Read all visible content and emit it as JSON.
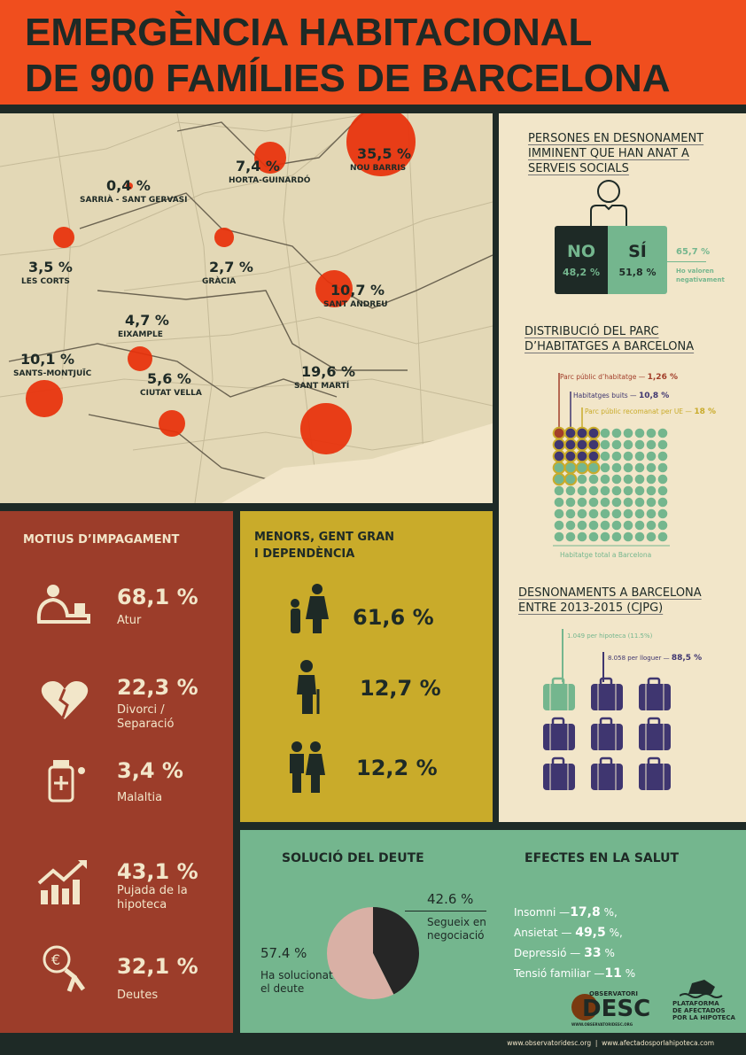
{
  "header": {
    "line1": "EMERGÈNCIA HABITACIONAL",
    "line2": "DE 900 FAMÍLIES DE BARCELONA"
  },
  "map": {
    "districts": [
      {
        "name": "NOU BARRIS",
        "pct": "35,5 %",
        "value": 35.5
      },
      {
        "name": "HORTA-GUINARDÓ",
        "pct": "7,4 %",
        "value": 7.4
      },
      {
        "name": "SARRIÀ - SANT GERVASI",
        "pct": "0,4 %",
        "value": 0.4
      },
      {
        "name": "LES CORTS",
        "pct": "3,5 %",
        "value": 3.5
      },
      {
        "name": "GRÀCIA",
        "pct": "2,7 %",
        "value": 2.7
      },
      {
        "name": "SANT ANDREU",
        "pct": "10,7 %",
        "value": 10.7
      },
      {
        "name": "EIXAMPLE",
        "pct": "4,7 %",
        "value": 4.7
      },
      {
        "name": "SANTS-MONTJUÏC",
        "pct": "10,1 %",
        "value": 10.1
      },
      {
        "name": "CIUTAT VELLA",
        "pct": "5,6 %",
        "value": 5.6
      },
      {
        "name": "SANT MARTÍ",
        "pct": "19,6 %",
        "value": 19.6
      }
    ],
    "circle_color": "#e8300a"
  },
  "social": {
    "title": [
      "PERSONES EN DESNONAMENT",
      "IMMINENT QUE HAN ANAT A",
      "SERVEIS SOCIALS"
    ],
    "no_label": "NO",
    "no_pct": "48,2 %",
    "si_label": "SÍ",
    "si_pct": "51,8 %",
    "neg_pct": "65,7 %",
    "neg_label": [
      "Ho valoren",
      "negativament"
    ]
  },
  "parc": {
    "title": [
      "DISTRIBUCIÓ DEL PARC",
      "D’HABITATGES A BARCELONA"
    ],
    "public": {
      "label": "Parc públic d’habitatge —",
      "pct": "1,26 %",
      "color": "#a23e2a"
    },
    "buits": {
      "label": "Habitatges buits —",
      "pct": "10,8 %",
      "color": "#3f3670"
    },
    "ue": {
      "label": "Parc públic recomanat per UE —",
      "pct": "18 %",
      "color": "#c9ab2a"
    },
    "total_label": "Habitatge total a Barcelona",
    "total_color": "#74b68e"
  },
  "desnon": {
    "title": [
      "DESNONAMENTS A BARCELONA",
      "ENTRE 2013-2015 (CJPG)"
    ],
    "hipoteca": "1.049 per hipoteca (11.5%)",
    "lloguer": "8.058 per lloguer —",
    "lloguer_pct": "88,5 %"
  },
  "motius": {
    "title": "MOTIUS D’IMPAGAMENT",
    "items": [
      {
        "pct": "68,1 %",
        "label": "Atur",
        "icon": "unemployed-person-icon"
      },
      {
        "pct": "22,3 %",
        "label": "Divorci / Separació",
        "icon": "broken-heart-icon"
      },
      {
        "pct": "3,4 %",
        "label": "Malaltia",
        "icon": "medicine-bottle-icon"
      },
      {
        "pct": "43,1 %",
        "label": "Pujada de la hipoteca",
        "icon": "rising-chart-icon"
      },
      {
        "pct": "32,1 %",
        "label": "Deutes",
        "icon": "debt-burden-icon"
      }
    ]
  },
  "menors": {
    "title": [
      "MENORS, GENT GRAN",
      "I DEPENDÈNCIA"
    ],
    "items": [
      {
        "pct": "61,6 %",
        "icon": "mother-child-icon"
      },
      {
        "pct": "12,7 %",
        "icon": "elderly-person-icon"
      },
      {
        "pct": "12,2 %",
        "icon": "elderly-couple-icon"
      }
    ]
  },
  "deute": {
    "title": "SOLUCIÓ DEL DEUTE",
    "chart_data": {
      "type": "pie",
      "slices": [
        {
          "label": "Segueix en negociació",
          "value": 42.6,
          "color": "#262626"
        },
        {
          "label": "Ha solucionat el deute",
          "value": 57.4,
          "color": "#d9b0a5"
        }
      ]
    },
    "seg_pct": "42.6 %",
    "seg_label": [
      "Segueix en",
      "negociació"
    ],
    "sol_pct": "57.4 %",
    "sol_label": [
      "Ha solucionat",
      "el deute"
    ]
  },
  "salut": {
    "title": "EFECTES EN LA SALUT",
    "items": [
      {
        "label": "Insomni —",
        "pct": "17,8",
        "unit": "%,"
      },
      {
        "label": "Ansietat —",
        "pct": "49,5",
        "unit": "%,"
      },
      {
        "label": "Depressió —",
        "pct": "33",
        "unit": "%"
      },
      {
        "label": "Tensió familiar —",
        "pct": "11",
        "unit": "%"
      }
    ]
  },
  "logos": {
    "desc_top": "OBSERVATORI",
    "desc_main": "DESC",
    "desc_url": "WWW.OBSERVATORIDESC.ORG",
    "pah": [
      "PLATAFORMA",
      "DE AFECTADOS",
      "POR LA HIPOTECA"
    ]
  },
  "footer": {
    "text": "www.observatoridesc.org  |  www.afectadosporlahipoteca.com"
  }
}
